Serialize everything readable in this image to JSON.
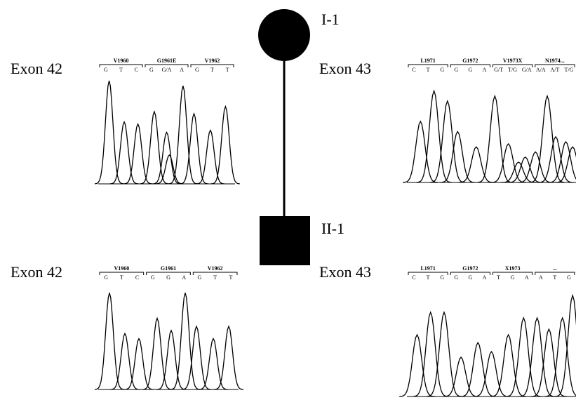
{
  "pedigree": {
    "individuals": [
      {
        "label": "I-1"
      },
      {
        "label": "II-1"
      }
    ]
  },
  "panels": [
    {
      "exon": "Exon 42",
      "codons": [
        "V1960",
        "G1961E",
        "V1962"
      ],
      "bases": [
        "G",
        "T",
        "C",
        "G",
        "G/A",
        "A",
        "G",
        "T",
        "T"
      ]
    },
    {
      "exon": "Exon 43",
      "codons": [
        "L1971",
        "G1972",
        "V1973X",
        "N1974..."
      ],
      "bases": [
        "C",
        "T",
        "G",
        "G",
        "G",
        "A",
        "G/T",
        "T/G",
        "G/A",
        "A/A",
        "A/T",
        "T/G"
      ]
    },
    {
      "exon": "Exon 42",
      "codons": [
        "V1960",
        "G1961",
        "V1962"
      ],
      "bases": [
        "G",
        "T",
        "C",
        "G",
        "G",
        "A",
        "G",
        "T",
        "T"
      ]
    },
    {
      "exon": "Exon 43",
      "codons": [
        "L1971",
        "G1972",
        "X1973",
        "..."
      ],
      "bases": [
        "C",
        "T",
        "G",
        "G",
        "G",
        "A",
        "T",
        "G",
        "A",
        "A",
        "T",
        "G"
      ]
    }
  ]
}
